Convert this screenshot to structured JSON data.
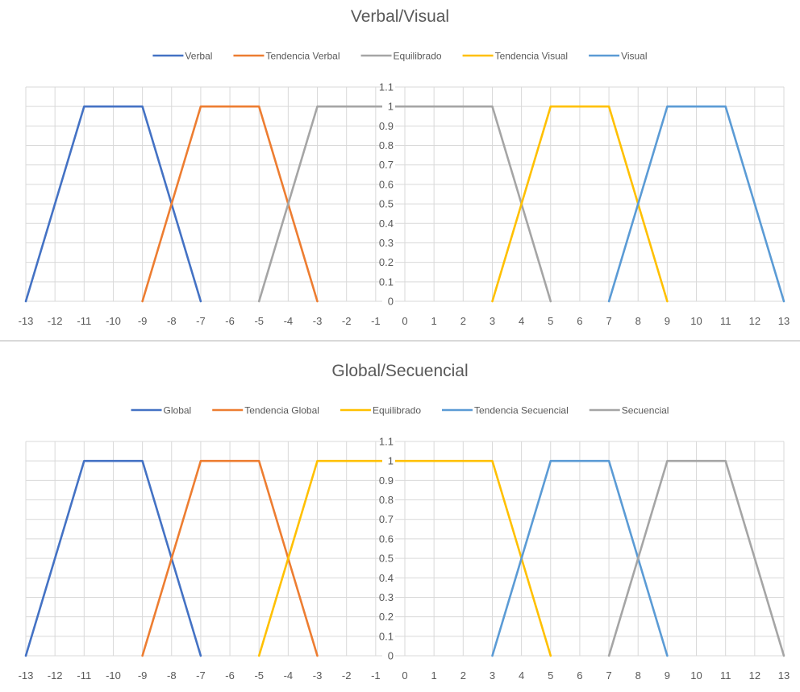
{
  "chart_data": [
    {
      "type": "line",
      "title": "Verbal/Visual",
      "xlabel": "",
      "ylabel": "",
      "xlim": [
        -13,
        13
      ],
      "ylim": [
        0,
        1.1
      ],
      "x_ticks": [
        "-13",
        "-12",
        "-11",
        "-10",
        "-9",
        "-8",
        "-7",
        "-6",
        "-5",
        "-4",
        "-3",
        "-2",
        "-1",
        "0",
        "1",
        "2",
        "3",
        "4",
        "5",
        "6",
        "7",
        "8",
        "9",
        "10",
        "11",
        "12",
        "13"
      ],
      "y_ticks": [
        "0",
        "0.1",
        "0.2",
        "0.3",
        "0.4",
        "0.5",
        "0.6",
        "0.7",
        "0.8",
        "0.9",
        "1",
        "1.1"
      ],
      "grid": true,
      "legend_position": "top",
      "series": [
        {
          "name": "Verbal",
          "color": "#4472c4",
          "x": [
            -13,
            -11,
            -9,
            -7
          ],
          "y": [
            0,
            1,
            1,
            0
          ]
        },
        {
          "name": "Tendencia Verbal",
          "color": "#ed7d31",
          "x": [
            -9,
            -7,
            -5,
            -3
          ],
          "y": [
            0,
            1,
            1,
            0
          ]
        },
        {
          "name": "Equilibrado",
          "color": "#a5a5a5",
          "x": [
            -5,
            -3,
            3,
            5
          ],
          "y": [
            0,
            1,
            1,
            0
          ]
        },
        {
          "name": "Tendencia Visual",
          "color": "#ffc000",
          "x": [
            3,
            5,
            7,
            9
          ],
          "y": [
            0,
            1,
            1,
            0
          ]
        },
        {
          "name": "Visual",
          "color": "#5b9bd5",
          "x": [
            7,
            9,
            11,
            13
          ],
          "y": [
            0,
            1,
            1,
            0
          ]
        }
      ]
    },
    {
      "type": "line",
      "title": "Global/Secuencial",
      "xlabel": "",
      "ylabel": "",
      "xlim": [
        -13,
        13
      ],
      "ylim": [
        0,
        1.1
      ],
      "x_ticks": [
        "-13",
        "-12",
        "-11",
        "-10",
        "-9",
        "-8",
        "-7",
        "-6",
        "-5",
        "-4",
        "-3",
        "-2",
        "-1",
        "0",
        "1",
        "2",
        "3",
        "4",
        "5",
        "6",
        "7",
        "8",
        "9",
        "10",
        "11",
        "12",
        "13"
      ],
      "y_ticks": [
        "0",
        "0.1",
        "0.2",
        "0.3",
        "0.4",
        "0.5",
        "0.6",
        "0.7",
        "0.8",
        "0.9",
        "1",
        "1.1"
      ],
      "grid": true,
      "legend_position": "top",
      "series": [
        {
          "name": "Global",
          "color": "#4472c4",
          "x": [
            -13,
            -11,
            -9,
            -7
          ],
          "y": [
            0,
            1,
            1,
            0
          ]
        },
        {
          "name": "Tendencia Global",
          "color": "#ed7d31",
          "x": [
            -9,
            -7,
            -5,
            -3
          ],
          "y": [
            0,
            1,
            1,
            0
          ]
        },
        {
          "name": "Equilibrado",
          "color": "#ffc000",
          "x": [
            -5,
            -3,
            3,
            5
          ],
          "y": [
            0,
            1,
            1,
            0
          ]
        },
        {
          "name": "Tendencia Secuencial",
          "color": "#5b9bd5",
          "x": [
            3,
            5,
            7,
            9
          ],
          "y": [
            0,
            1,
            1,
            0
          ]
        },
        {
          "name": "Secuencial",
          "color": "#a5a5a5",
          "x": [
            7,
            9,
            11,
            13
          ],
          "y": [
            0,
            1,
            1,
            0
          ]
        }
      ]
    }
  ]
}
